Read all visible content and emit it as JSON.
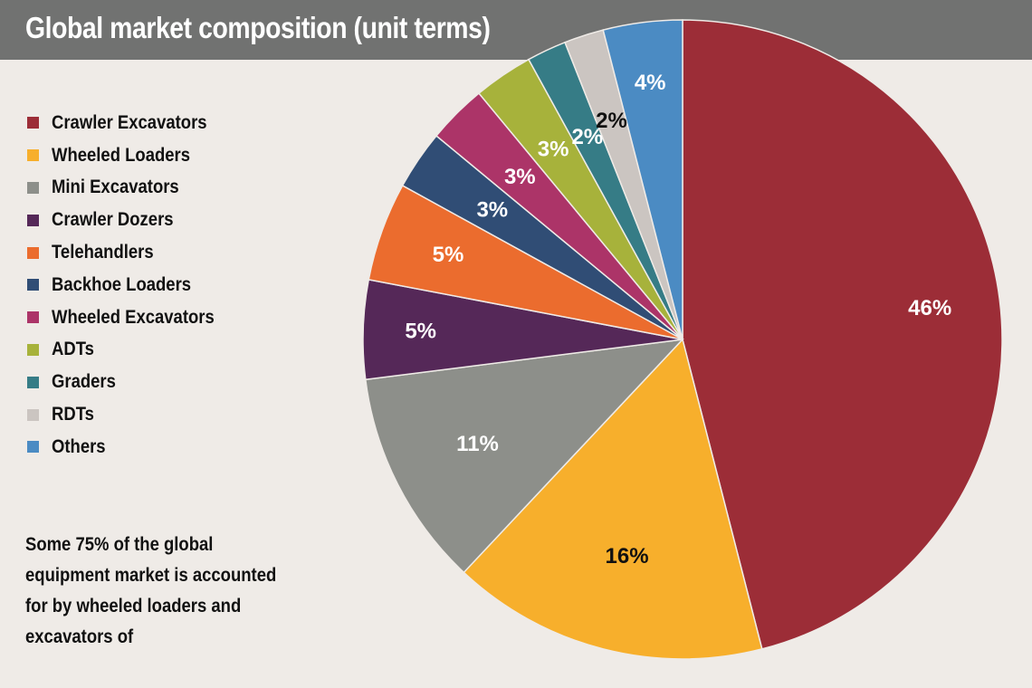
{
  "chart_data": {
    "type": "pie",
    "title": "Global market composition (unit terms)",
    "categories": [
      "Crawler Excavators",
      "Wheeled Loaders",
      "Mini Excavators",
      "Crawler Dozers",
      "Telehandlers",
      "Backhoe Loaders",
      "Wheeled Excavators",
      "ADTs",
      "Graders",
      "RDTs",
      "Others"
    ],
    "values": [
      46,
      16,
      11,
      5,
      5,
      3,
      3,
      3,
      2,
      2,
      4
    ],
    "labels": [
      "46%",
      "16%",
      "11%",
      "5%",
      "5%",
      "3%",
      "3%",
      "3%",
      "2%",
      "2%",
      "4%"
    ],
    "colors": [
      "#9c2d37",
      "#f7af2c",
      "#8d8f8a",
      "#552858",
      "#eb6c2e",
      "#304d75",
      "#ac3468",
      "#a7b23b",
      "#367c86",
      "#cbc5c1",
      "#4b8bc3"
    ],
    "label_colors": [
      "#ffffff",
      "#111111",
      "#ffffff",
      "#ffffff",
      "#ffffff",
      "#ffffff",
      "#ffffff",
      "#ffffff",
      "#ffffff",
      "#111111",
      "#ffffff"
    ],
    "legend_placement": "left",
    "start_angle_deg": 0,
    "direction": "clockwise"
  },
  "note": "Some 75% of the global equipment market is accounted for by wheeled loaders and excavators of"
}
